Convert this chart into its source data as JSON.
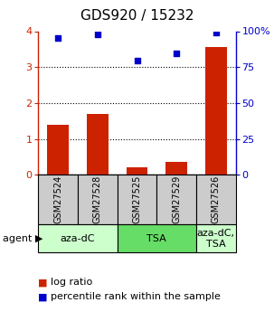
{
  "title": "GDS920 / 15232",
  "samples": [
    "GSM27524",
    "GSM27528",
    "GSM27525",
    "GSM27529",
    "GSM27526"
  ],
  "log_ratio": [
    1.4,
    1.7,
    0.2,
    0.35,
    3.55
  ],
  "percentile_rank_pct": [
    95.5,
    98.0,
    79.5,
    84.5,
    98.8
  ],
  "bar_color": "#cc2200",
  "dot_color": "#0000cc",
  "ylim_left": [
    0,
    4
  ],
  "ylim_right": [
    0,
    100
  ],
  "yticks_left": [
    0,
    1,
    2,
    3,
    4
  ],
  "yticks_right": [
    0,
    25,
    50,
    75,
    100
  ],
  "ytick_labels_left": [
    "0",
    "1",
    "2",
    "3",
    "4"
  ],
  "ytick_labels_right": [
    "0",
    "25",
    "50",
    "75",
    "100%"
  ],
  "groups": [
    {
      "label": "aza-dC",
      "cols": [
        0,
        1
      ],
      "color": "#ccffcc"
    },
    {
      "label": "TSA",
      "cols": [
        2,
        3
      ],
      "color": "#66dd66"
    },
    {
      "label": "aza-dC,\nTSA",
      "cols": [
        4
      ],
      "color": "#ccffcc"
    }
  ],
  "agent_label": "agent",
  "legend_bar_label": "log ratio",
  "legend_dot_label": "percentile rank within the sample",
  "background_color": "#ffffff",
  "sample_box_color": "#cccccc",
  "title_fontsize": 11,
  "tick_fontsize": 8,
  "sample_fontsize": 7,
  "group_fontsize": 8,
  "legend_fontsize": 8
}
